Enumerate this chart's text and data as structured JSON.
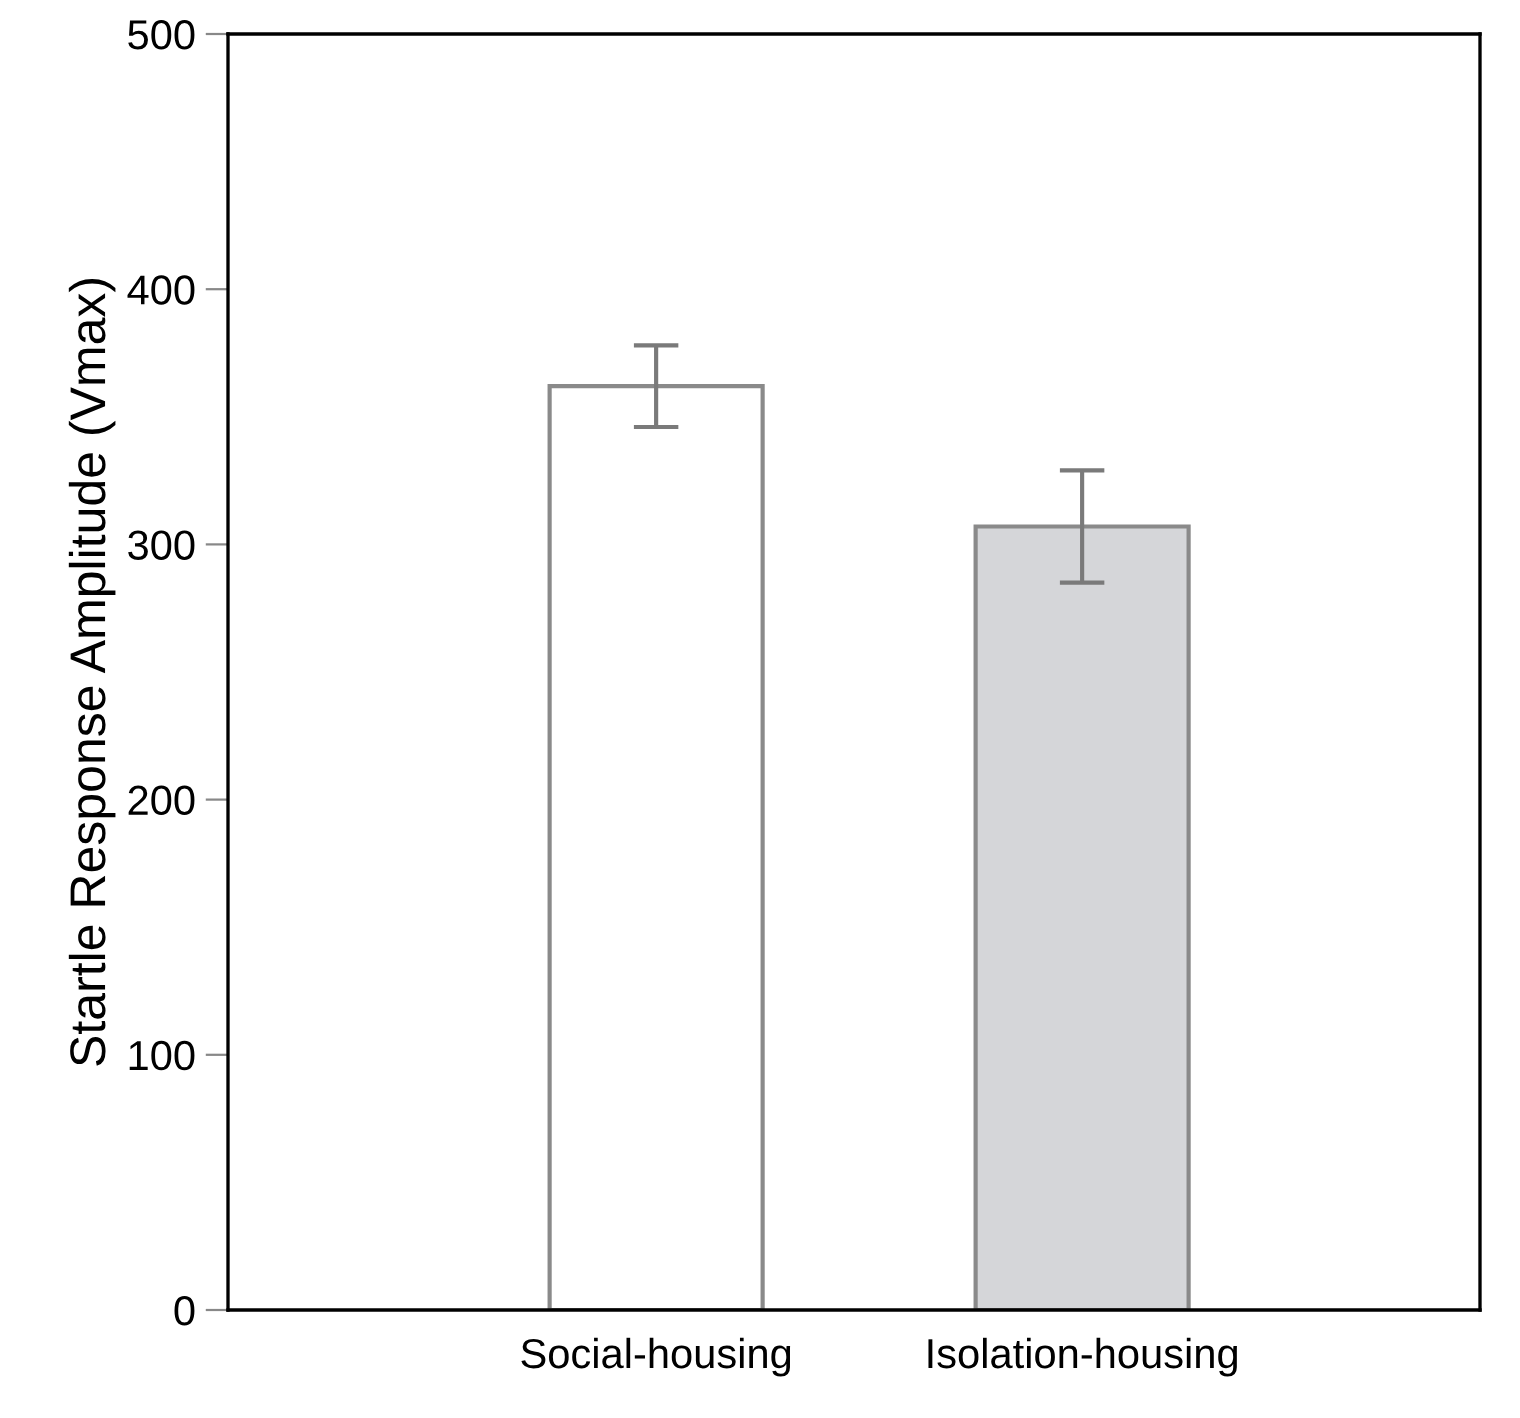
{
  "chart_data": {
    "type": "bar",
    "ylabel": "Startle Response Amplitude (Vmax)",
    "categories": [
      "Social-housing",
      "Isolation-housing"
    ],
    "values": [
      362,
      307
    ],
    "colors": [
      "#ffffff",
      "#d5d6d9"
    ],
    "errors": [
      [
        346,
        378
      ],
      [
        285,
        329
      ]
    ],
    "ylim": [
      0,
      500
    ],
    "yticks": [
      0,
      100,
      200,
      300,
      400,
      500
    ],
    "grid": false,
    "legend": false
  }
}
